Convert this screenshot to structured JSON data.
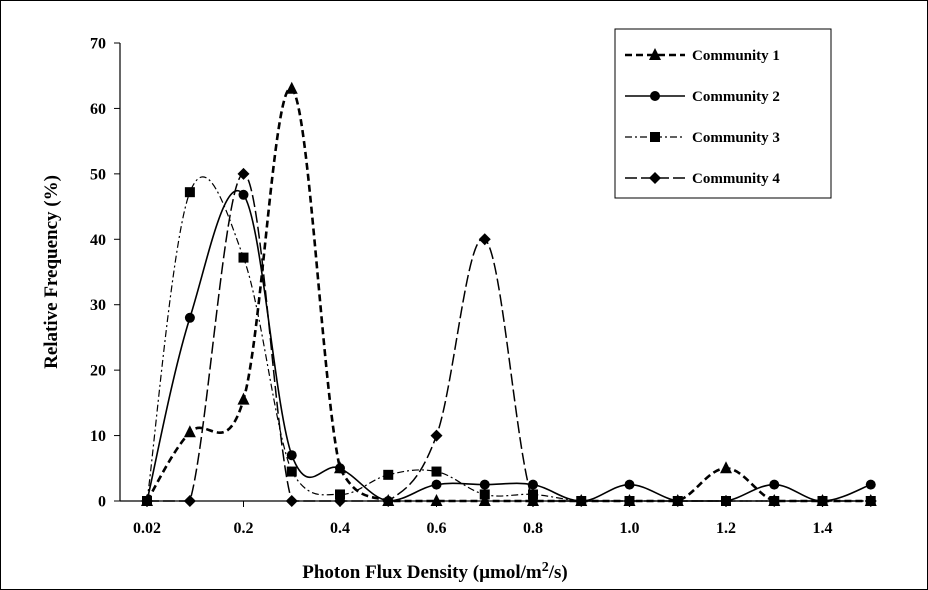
{
  "chart_data": {
    "type": "line",
    "title": "",
    "xlabel": "Photon Flux Density (µmol/m2/s)",
    "xlabel_parts": {
      "prefix": "Photon Flux Density (µmol/m",
      "superscript": "2",
      "suffix": "/s)"
    },
    "ylabel": "Relative Frequency (%)",
    "x_tick_labels": [
      "0.02",
      "0.2",
      "0.4",
      "0.6",
      "0.8",
      "1.0",
      "1.2",
      "1.4"
    ],
    "y_tick_labels": [
      "0",
      "10",
      "20",
      "30",
      "40",
      "50",
      "60",
      "70"
    ],
    "ylim": [
      0,
      70
    ],
    "grid": false,
    "legend_position": "top-right",
    "x": [
      0.02,
      0.1,
      0.2,
      0.3,
      0.4,
      0.5,
      0.6,
      0.7,
      0.8,
      0.9,
      1.0,
      1.1,
      1.2,
      1.3,
      1.4,
      1.5
    ],
    "series": [
      {
        "name": "Community 1",
        "marker": "triangle",
        "line_style": "dash",
        "color": "#000000",
        "values": [
          0,
          10.5,
          15.5,
          63,
          5,
          0,
          0,
          0,
          0,
          0,
          0,
          0,
          5,
          0,
          0,
          0
        ]
      },
      {
        "name": "Community 2",
        "marker": "circle",
        "line_style": "solid",
        "color": "#000000",
        "values": [
          0,
          28,
          46.8,
          7,
          5,
          0,
          2.5,
          2.5,
          2.5,
          0,
          2.5,
          0,
          0,
          2.5,
          0,
          2.5
        ]
      },
      {
        "name": "Community 3",
        "marker": "square",
        "line_style": "dash-dot",
        "color": "#000000",
        "values": [
          0,
          47.2,
          37.2,
          4.5,
          1,
          4,
          4.5,
          1,
          1,
          0,
          0,
          0,
          0,
          0,
          0,
          0
        ]
      },
      {
        "name": "Community 4",
        "marker": "diamond",
        "line_style": "long-dash",
        "color": "#000000",
        "values": [
          0,
          0,
          50,
          0,
          0,
          0,
          10,
          40,
          0,
          0,
          0,
          0,
          0,
          0,
          0,
          0
        ]
      }
    ]
  }
}
